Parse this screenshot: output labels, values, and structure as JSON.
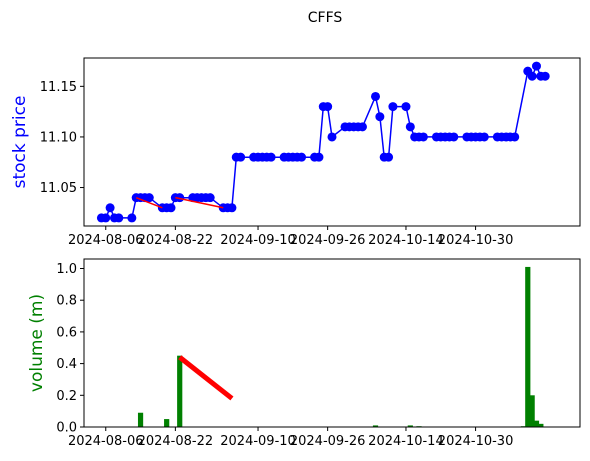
{
  "figure_title": "CFFS",
  "chart_data": [
    {
      "type": "line",
      "title": "",
      "xlabel": "",
      "ylabel": "stock price",
      "ylabel_color": "#0000ff",
      "ylim": [
        11.012,
        11.178
      ],
      "xlim": [
        "2024-08-01",
        "2024-11-23"
      ],
      "x_ticks": [
        "2024-08-06",
        "2024-08-22",
        "2024-09-10",
        "2024-09-26",
        "2024-10-14",
        "2024-10-30"
      ],
      "y_ticks": [
        "11.05",
        "11.10",
        "11.15"
      ],
      "grid": false,
      "series": [
        {
          "color": "#0000ff",
          "marker": "circle",
          "points": [
            [
              "2024-08-05",
              11.02
            ],
            [
              "2024-08-06",
              11.02
            ],
            [
              "2024-08-07",
              11.03
            ],
            [
              "2024-08-08",
              11.02
            ],
            [
              "2024-08-09",
              11.02
            ],
            [
              "2024-08-12",
              11.02
            ],
            [
              "2024-08-13",
              11.04
            ],
            [
              "2024-08-14",
              11.04
            ],
            [
              "2024-08-15",
              11.04
            ],
            [
              "2024-08-16",
              11.04
            ],
            [
              "2024-08-19",
              11.03
            ],
            [
              "2024-08-20",
              11.03
            ],
            [
              "2024-08-21",
              11.03
            ],
            [
              "2024-08-22",
              11.04
            ],
            [
              "2024-08-23",
              11.04
            ],
            [
              "2024-08-26",
              11.04
            ],
            [
              "2024-08-27",
              11.04
            ],
            [
              "2024-08-28",
              11.04
            ],
            [
              "2024-08-29",
              11.04
            ],
            [
              "2024-08-30",
              11.04
            ],
            [
              "2024-09-02",
              11.03
            ],
            [
              "2024-09-03",
              11.03
            ],
            [
              "2024-09-04",
              11.03
            ],
            [
              "2024-09-05",
              11.08
            ],
            [
              "2024-09-06",
              11.08
            ],
            [
              "2024-09-09",
              11.08
            ],
            [
              "2024-09-10",
              11.08
            ],
            [
              "2024-09-11",
              11.08
            ],
            [
              "2024-09-12",
              11.08
            ],
            [
              "2024-09-13",
              11.08
            ],
            [
              "2024-09-16",
              11.08
            ],
            [
              "2024-09-17",
              11.08
            ],
            [
              "2024-09-18",
              11.08
            ],
            [
              "2024-09-19",
              11.08
            ],
            [
              "2024-09-20",
              11.08
            ],
            [
              "2024-09-23",
              11.08
            ],
            [
              "2024-09-24",
              11.08
            ],
            [
              "2024-09-25",
              11.13
            ],
            [
              "2024-09-26",
              11.13
            ],
            [
              "2024-09-27",
              11.1
            ],
            [
              "2024-09-30",
              11.11
            ],
            [
              "2024-10-01",
              11.11
            ],
            [
              "2024-10-02",
              11.11
            ],
            [
              "2024-10-03",
              11.11
            ],
            [
              "2024-10-04",
              11.11
            ],
            [
              "2024-10-07",
              11.14
            ],
            [
              "2024-10-08",
              11.12
            ],
            [
              "2024-10-09",
              11.08
            ],
            [
              "2024-10-10",
              11.08
            ],
            [
              "2024-10-11",
              11.13
            ],
            [
              "2024-10-14",
              11.13
            ],
            [
              "2024-10-15",
              11.11
            ],
            [
              "2024-10-16",
              11.1
            ],
            [
              "2024-10-17",
              11.1
            ],
            [
              "2024-10-18",
              11.1
            ],
            [
              "2024-10-21",
              11.1
            ],
            [
              "2024-10-22",
              11.1
            ],
            [
              "2024-10-23",
              11.1
            ],
            [
              "2024-10-24",
              11.1
            ],
            [
              "2024-10-25",
              11.1
            ],
            [
              "2024-10-28",
              11.1
            ],
            [
              "2024-10-29",
              11.1
            ],
            [
              "2024-10-30",
              11.1
            ],
            [
              "2024-10-31",
              11.1
            ],
            [
              "2024-11-01",
              11.1
            ],
            [
              "2024-11-04",
              11.1
            ],
            [
              "2024-11-05",
              11.1
            ],
            [
              "2024-11-06",
              11.1
            ],
            [
              "2024-11-07",
              11.1
            ],
            [
              "2024-11-08",
              11.1
            ],
            [
              "2024-11-11",
              11.165
            ],
            [
              "2024-11-12",
              11.16
            ],
            [
              "2024-11-13",
              11.17
            ],
            [
              "2024-11-14",
              11.16
            ],
            [
              "2024-11-15",
              11.16
            ]
          ]
        }
      ],
      "annotation_lines": [
        {
          "color": "#ff0000",
          "points": [
            [
              "2024-08-13",
              11.04
            ],
            [
              "2024-08-19",
              11.03
            ]
          ]
        },
        {
          "color": "#ff0000",
          "points": [
            [
              "2024-08-22",
              11.04
            ],
            [
              "2024-09-02",
              11.03
            ]
          ]
        }
      ]
    },
    {
      "type": "bar",
      "title": "",
      "xlabel": "",
      "ylabel": "volume (m)",
      "ylabel_color": "#008000",
      "ylim": [
        0,
        1.06
      ],
      "xlim": [
        "2024-08-01",
        "2024-11-23"
      ],
      "x_ticks": [
        "2024-08-06",
        "2024-08-22",
        "2024-09-10",
        "2024-09-26",
        "2024-10-14",
        "2024-10-30"
      ],
      "y_ticks": [
        "0.0",
        "0.2",
        "0.4",
        "0.6",
        "0.8",
        "1.0"
      ],
      "grid": false,
      "series": [
        {
          "color": "#008000",
          "points": [
            [
              "2024-08-14",
              0.09
            ],
            [
              "2024-08-20",
              0.05
            ],
            [
              "2024-08-23",
              0.45
            ],
            [
              "2024-10-07",
              0.01
            ],
            [
              "2024-10-15",
              0.01
            ],
            [
              "2024-10-17",
              0.005
            ],
            [
              "2024-11-10",
              0.005
            ],
            [
              "2024-11-11",
              1.01
            ],
            [
              "2024-11-12",
              0.2
            ],
            [
              "2024-11-13",
              0.04
            ],
            [
              "2024-11-14",
              0.02
            ]
          ]
        }
      ],
      "annotation_lines": [
        {
          "color": "#ff0000",
          "points": [
            [
              "2024-08-23",
              0.44
            ],
            [
              "2024-09-04",
              0.18
            ]
          ]
        }
      ]
    }
  ]
}
